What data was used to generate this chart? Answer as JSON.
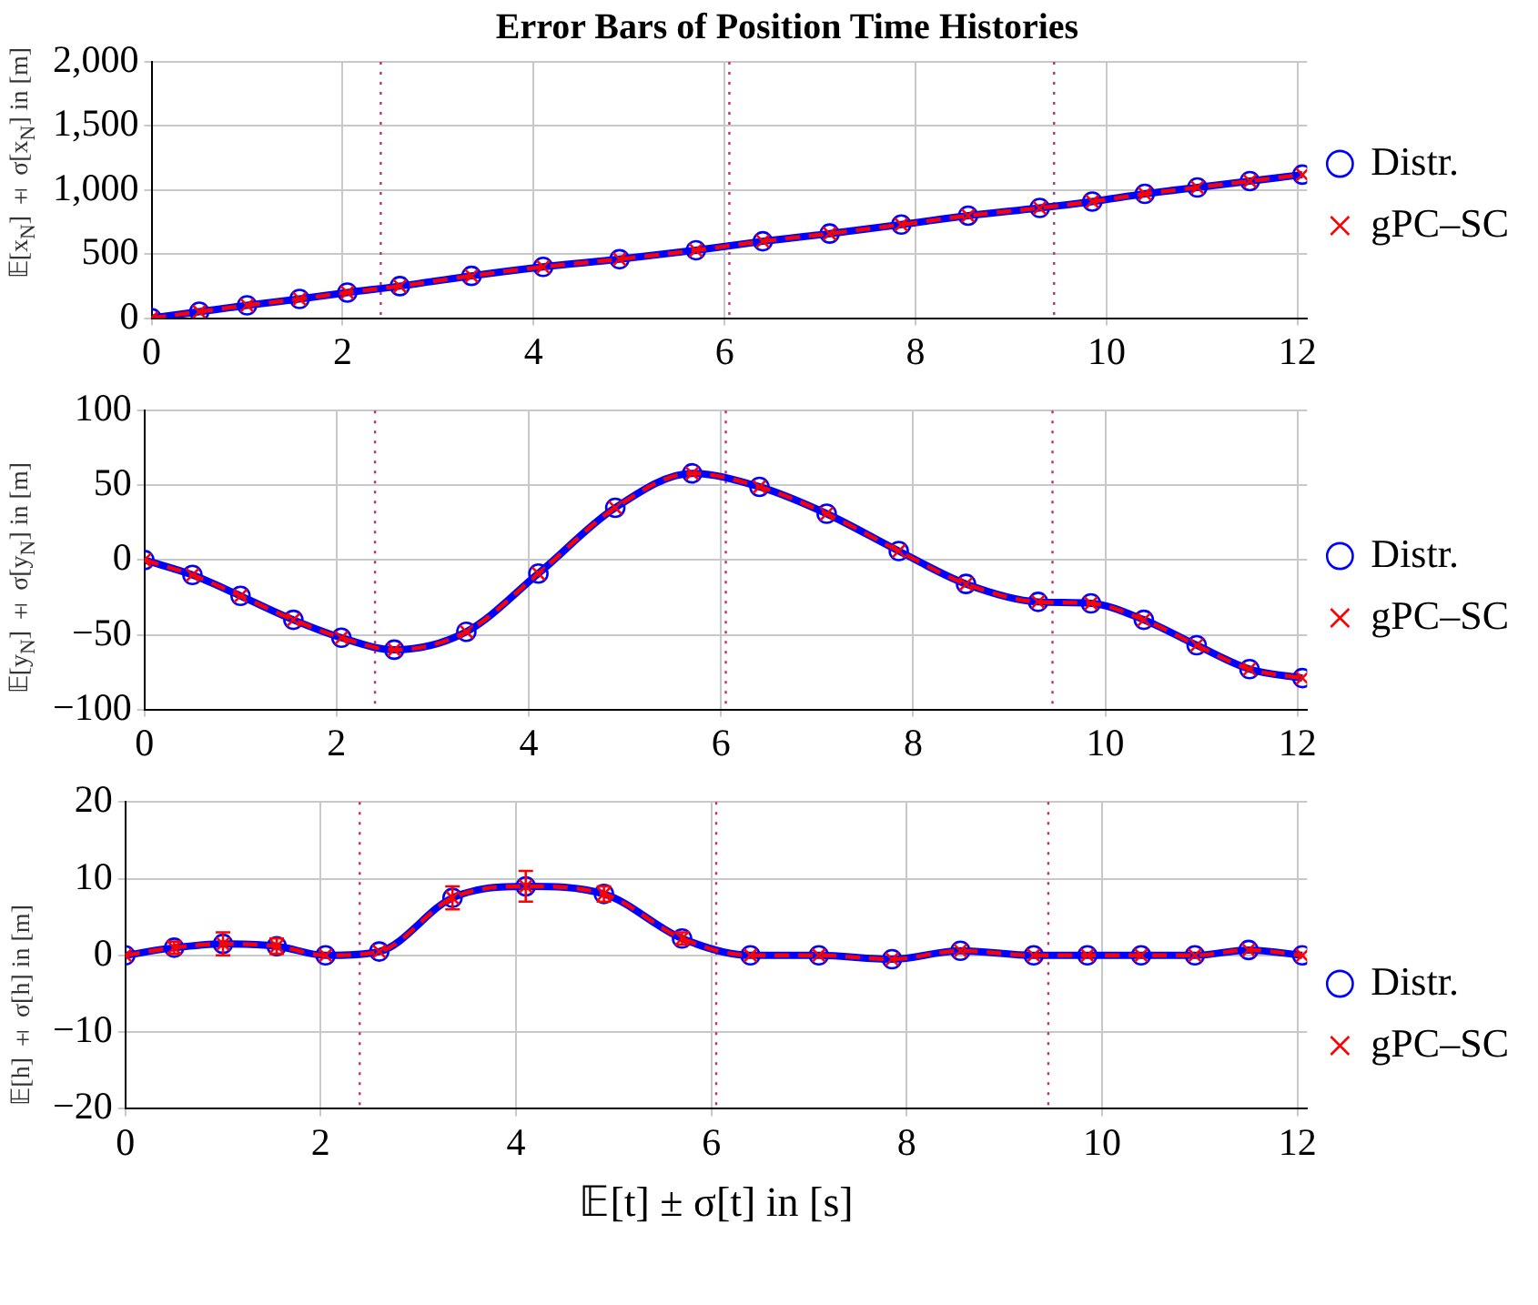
{
  "chart_data": [
    {
      "type": "line",
      "title": "Error Bars of Position Time Histories",
      "ylabel": "𝔼[x$_{N}$] ± σ[x$_{N}$] in [m]",
      "x": [
        0,
        0.5,
        1.0,
        1.55,
        2.05,
        2.6,
        3.35,
        4.1,
        4.9,
        5.7,
        6.4,
        7.1,
        7.85,
        8.55,
        9.3,
        9.85,
        10.4,
        10.95,
        11.5,
        12.05
      ],
      "series": [
        {
          "name": "Distr.",
          "color": "#0000ff",
          "marker": "circle",
          "line_style": "solid",
          "values": [
            0,
            50,
            100,
            150,
            200,
            250,
            330,
            400,
            460,
            530,
            600,
            660,
            730,
            800,
            860,
            910,
            970,
            1020,
            1070,
            1120
          ]
        },
        {
          "name": "gPC–SC",
          "color": "#ff0000",
          "marker": "cross",
          "line_style": "dashed",
          "values": [
            0,
            50,
            100,
            150,
            200,
            250,
            330,
            400,
            460,
            530,
            600,
            660,
            730,
            800,
            860,
            910,
            970,
            1020,
            1070,
            1120
          ]
        }
      ],
      "xlim": [
        0,
        12.1
      ],
      "xticks": [
        0,
        2,
        4,
        6,
        8,
        10,
        12
      ],
      "ylim": [
        0,
        2000
      ],
      "yticks": [
        0,
        500,
        {
          "value": 1000,
          "label": "1,000"
        },
        {
          "value": 1500,
          "label": "1,500"
        },
        {
          "value": 2000,
          "label": "2,000"
        }
      ],
      "ref_lines": [
        {
          "axis": "x",
          "value": 2.4,
          "color": "#c03070",
          "line_style": "dotted"
        },
        {
          "axis": "x",
          "value": 6.05,
          "color": "#c03070",
          "line_style": "dotted"
        },
        {
          "axis": "x",
          "value": 9.45,
          "color": "#c03070",
          "line_style": "dotted"
        }
      ],
      "grid": true,
      "legend": "right"
    },
    {
      "type": "line",
      "ylabel": "𝔼[y$_{N}$] ± σ[y$_{N}$] in [m]",
      "x": [
        0,
        0.5,
        1.0,
        1.55,
        2.05,
        2.6,
        3.35,
        4.1,
        4.9,
        5.7,
        6.4,
        7.1,
        7.85,
        8.55,
        9.3,
        9.85,
        10.4,
        10.95,
        11.5,
        12.05
      ],
      "series": [
        {
          "name": "Distr.",
          "color": "#0000ff",
          "marker": "circle",
          "line_style": "solid",
          "values": [
            0,
            -10,
            -24,
            -40,
            -52,
            -60,
            -48,
            -9,
            35,
            58,
            49,
            31,
            6,
            -16,
            -28,
            -29,
            -40,
            -57,
            -73,
            -79
          ]
        },
        {
          "name": "gPC–SC",
          "color": "#ff0000",
          "marker": "cross",
          "line_style": "dashed",
          "values": [
            0,
            -10,
            -24,
            -40,
            -52,
            -60,
            -48,
            -9,
            35,
            58,
            49,
            31,
            6,
            -16,
            -28,
            -29,
            -40,
            -57,
            -73,
            -79
          ]
        }
      ],
      "xlim": [
        0,
        12.1
      ],
      "xticks": [
        0,
        2,
        4,
        6,
        8,
        10,
        12
      ],
      "ylim": [
        -100,
        100
      ],
      "yticks": [
        {
          "value": -100,
          "label": "−100"
        },
        {
          "value": -50,
          "label": "−50"
        },
        0,
        50,
        100
      ],
      "ref_lines": [
        {
          "axis": "x",
          "value": 2.4,
          "color": "#c03070",
          "line_style": "dotted"
        },
        {
          "axis": "x",
          "value": 6.05,
          "color": "#c03070",
          "line_style": "dotted"
        },
        {
          "axis": "x",
          "value": 9.45,
          "color": "#c03070",
          "line_style": "dotted"
        }
      ],
      "grid": true,
      "legend": "right"
    },
    {
      "type": "line",
      "ylabel": "𝔼[h] ± σ[h] in [m]",
      "xlabel": "𝔼[t] ± σ[t] in [s]",
      "x": [
        0,
        0.5,
        1.0,
        1.55,
        2.05,
        2.6,
        3.35,
        4.1,
        4.9,
        5.7,
        6.4,
        7.1,
        7.85,
        8.55,
        9.3,
        9.85,
        10.4,
        10.95,
        11.5,
        12.05
      ],
      "series": [
        {
          "name": "Distr.",
          "color": "#0000ff",
          "marker": "circle",
          "line_style": "solid",
          "values": [
            0,
            1,
            1.5,
            1.2,
            0,
            0.5,
            7.5,
            9,
            8,
            2.2,
            0,
            0,
            -0.5,
            0.6,
            0,
            0,
            0,
            0,
            0.7,
            0
          ]
        },
        {
          "name": "gPC–SC",
          "color": "#ff0000",
          "marker": "cross",
          "line_style": "dashed",
          "values": [
            0,
            1,
            1.5,
            1.2,
            0,
            0.5,
            7.5,
            9,
            8,
            2.2,
            0,
            0,
            -0.5,
            0.6,
            0,
            0,
            0,
            0,
            0.7,
            0
          ],
          "errors": [
            null,
            0.8,
            1.5,
            1,
            null,
            null,
            1.5,
            2,
            1,
            0.8,
            null,
            null,
            null,
            null,
            null,
            null,
            null,
            null,
            null,
            null
          ]
        }
      ],
      "xlim": [
        0,
        12.1
      ],
      "xticks": [
        0,
        2,
        4,
        6,
        8,
        10,
        12
      ],
      "ylim": [
        -20,
        20
      ],
      "yticks": [
        {
          "value": -20,
          "label": "−20"
        },
        {
          "value": -10,
          "label": "−10"
        },
        0,
        10,
        20
      ],
      "ref_lines": [
        {
          "axis": "x",
          "value": 2.4,
          "color": "#c03070",
          "line_style": "dotted"
        },
        {
          "axis": "x",
          "value": 6.05,
          "color": "#c03070",
          "line_style": "dotted"
        },
        {
          "axis": "x",
          "value": 9.45,
          "color": "#c03070",
          "line_style": "dotted"
        }
      ],
      "grid": true,
      "legend": "right"
    }
  ]
}
